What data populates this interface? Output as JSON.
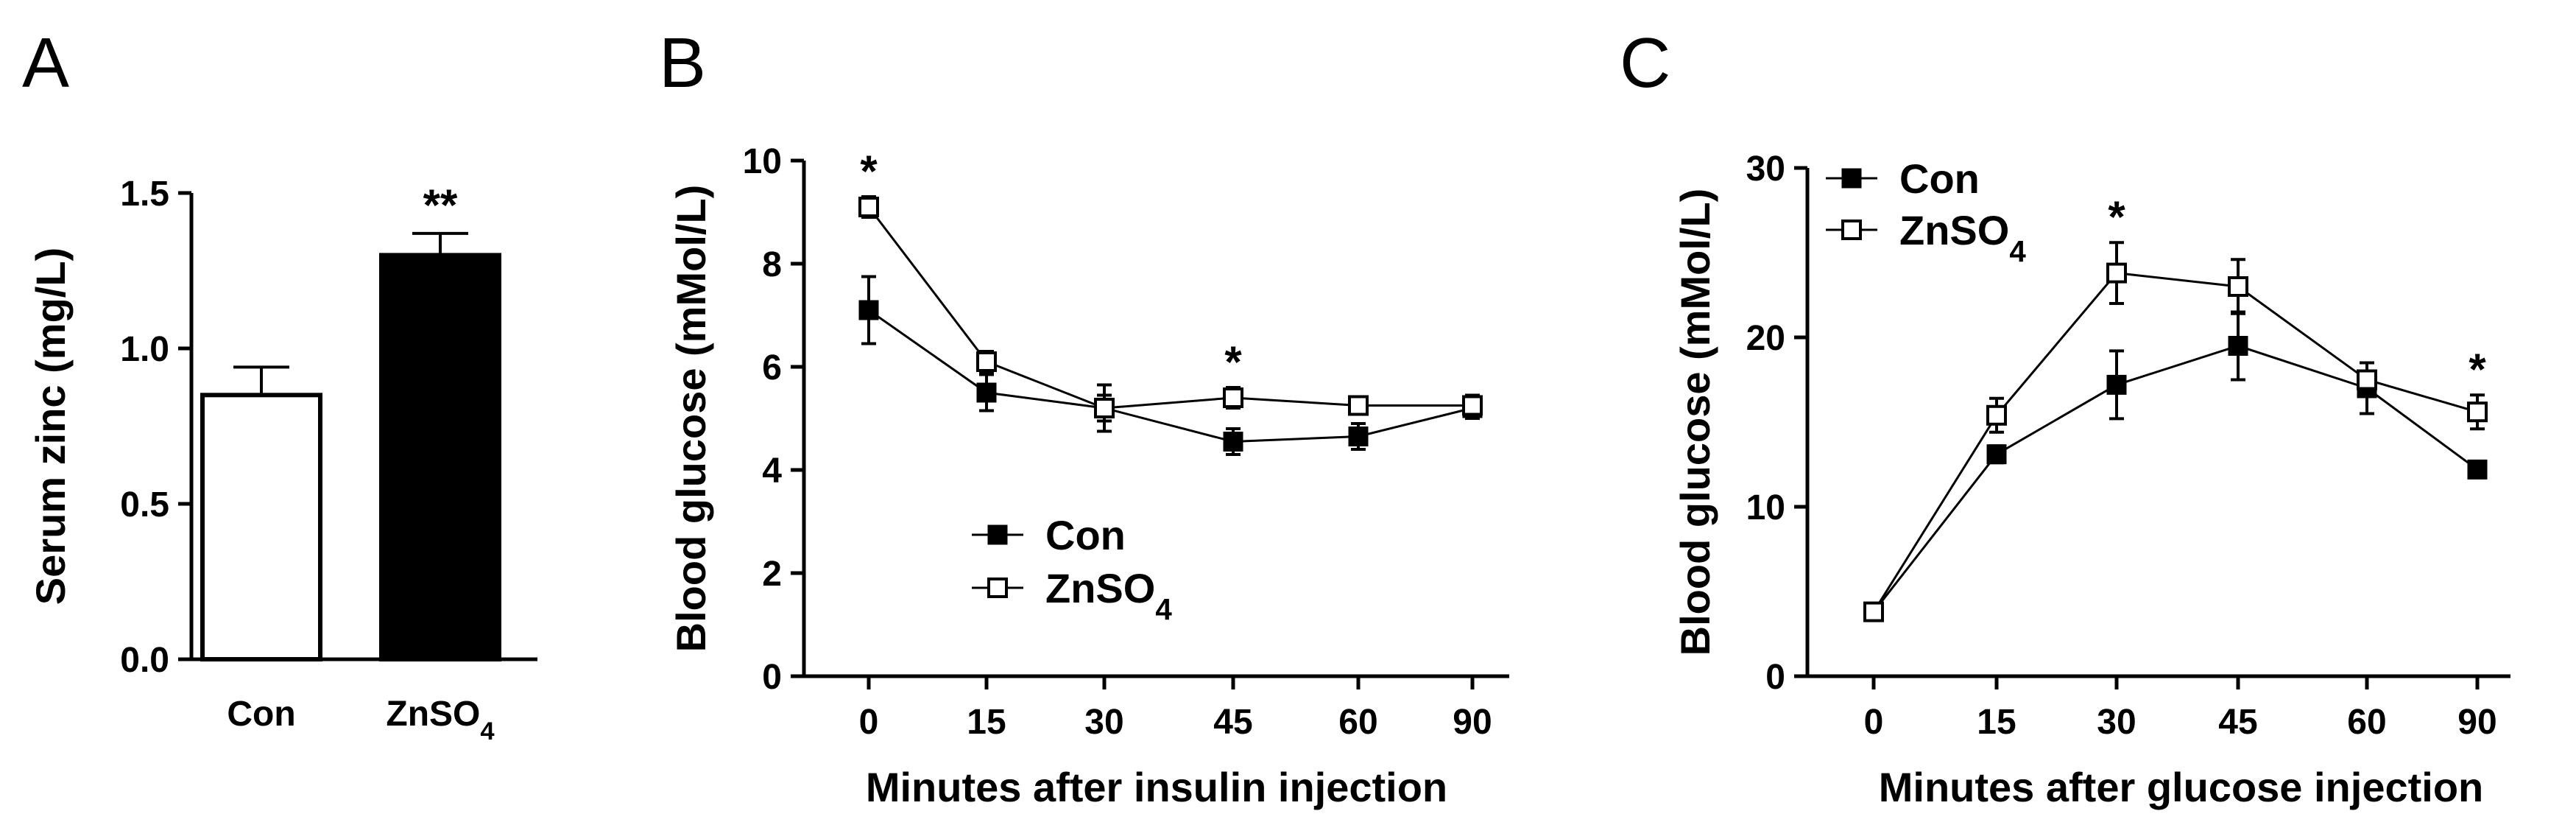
{
  "chart_data": [
    {
      "panel": "A",
      "type": "bar",
      "categories": [
        "Con",
        "ZnSO4"
      ],
      "values": [
        0.85,
        1.3
      ],
      "errors": [
        0.09,
        0.07
      ],
      "fills": [
        "#ffffff",
        "#000000"
      ],
      "annotations": [
        "",
        "**"
      ],
      "ylabel": "Serum zinc (mg/L)",
      "ylim": [
        0,
        1.5
      ],
      "yticks": [
        "0.0",
        "0.5",
        "1.0",
        "1.5"
      ]
    },
    {
      "panel": "B",
      "type": "line",
      "x": [
        0,
        15,
        30,
        45,
        60,
        90
      ],
      "xticks": [
        "0",
        "15",
        "30",
        "45",
        "60",
        "90"
      ],
      "xlabel": "Minutes after insulin injection",
      "ylabel": "Blood glucose (mMol/L)",
      "ylim": [
        0,
        10
      ],
      "yticks": [
        "0",
        "2",
        "4",
        "6",
        "8",
        "10"
      ],
      "legend_position": "center",
      "series": [
        {
          "name": "Con",
          "marker": "filled-square",
          "values": [
            7.1,
            5.5,
            5.2,
            4.55,
            4.65,
            5.2
          ],
          "errors": [
            0.65,
            0.35,
            0.45,
            0.25,
            0.25,
            0.2
          ]
        },
        {
          "name": "ZnSO4",
          "marker": "open-square",
          "values": [
            9.1,
            6.1,
            5.2,
            5.4,
            5.25,
            5.25
          ],
          "errors": [
            0.2,
            0.2,
            0.25,
            0.2,
            0.15,
            0.2
          ]
        }
      ],
      "annotations": [
        {
          "x": 0,
          "text": "*"
        },
        {
          "x": 45,
          "text": "*"
        }
      ]
    },
    {
      "panel": "C",
      "type": "line",
      "x": [
        0,
        15,
        30,
        45,
        60,
        90
      ],
      "xticks": [
        "0",
        "15",
        "30",
        "45",
        "60",
        "90"
      ],
      "xlabel": "Minutes after glucose injection",
      "ylabel": "Blood glucose (mMol/L)",
      "ylim": [
        0,
        30
      ],
      "yticks": [
        "0",
        "10",
        "20",
        "30"
      ],
      "legend_position": "top-left",
      "series": [
        {
          "name": "Con",
          "marker": "filled-square",
          "values": [
            3.8,
            13.1,
            17.2,
            19.5,
            17.0,
            12.2
          ],
          "errors": [
            0.4,
            0.5,
            2.0,
            2.0,
            1.5,
            0.4
          ]
        },
        {
          "name": "ZnSO4",
          "marker": "open-square",
          "values": [
            3.8,
            15.4,
            23.8,
            23.0,
            17.5,
            15.6
          ],
          "errors": [
            0.4,
            1.0,
            1.8,
            1.6,
            1.0,
            1.0
          ]
        }
      ],
      "annotations": [
        {
          "x": 30,
          "text": "*"
        },
        {
          "x": 90,
          "text": "*"
        }
      ]
    }
  ]
}
